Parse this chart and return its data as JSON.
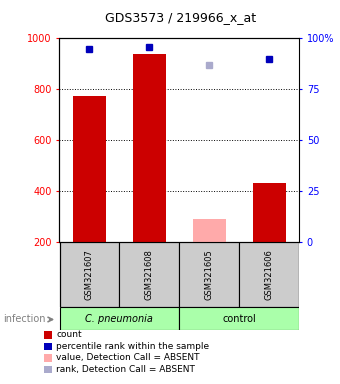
{
  "title": "GDS3573 / 219966_x_at",
  "samples": [
    "GSM321607",
    "GSM321608",
    "GSM321605",
    "GSM321606"
  ],
  "bar_counts": [
    775,
    940,
    null,
    430
  ],
  "bar_counts_absent": [
    null,
    null,
    290,
    null
  ],
  "percentile_ranks": [
    95,
    96,
    null,
    90
  ],
  "percentile_ranks_absent": [
    null,
    null,
    87,
    null
  ],
  "ylim_left": [
    200,
    1000
  ],
  "ylim_right": [
    0,
    100
  ],
  "yticks_left": [
    200,
    400,
    600,
    800,
    1000
  ],
  "yticks_right": [
    0,
    25,
    50,
    75,
    100
  ],
  "ytick_right_labels": [
    "0",
    "25",
    "50",
    "75",
    "100%"
  ],
  "bar_color": "#cc0000",
  "bar_absent_color": "#ffaaaa",
  "dot_color": "#0000bb",
  "dot_absent_color": "#aaaacc",
  "sample_box_color": "#cccccc",
  "group1_color": "#aaffaa",
  "group2_color": "#aaffaa",
  "group1_label": "C. pneumonia",
  "group2_label": "control",
  "infection_label": "infection",
  "legend_items": [
    {
      "label": "count",
      "color": "#cc0000"
    },
    {
      "label": "percentile rank within the sample",
      "color": "#0000bb"
    },
    {
      "label": "value, Detection Call = ABSENT",
      "color": "#ffaaaa"
    },
    {
      "label": "rank, Detection Call = ABSENT",
      "color": "#aaaacc"
    }
  ],
  "grid_lines": [
    400,
    600,
    800
  ],
  "title_fontsize": 9,
  "axis_fontsize": 7,
  "legend_fontsize": 6.5,
  "sample_fontsize": 6,
  "group_fontsize": 7
}
